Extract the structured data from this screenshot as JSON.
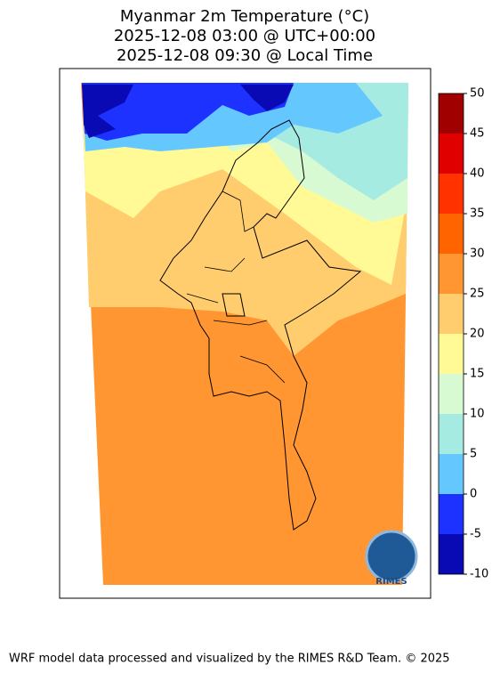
{
  "title": [
    "Myanmar 2m Temperature (°C)",
    "2025-12-08 03:00 @ UTC+00:00",
    "2025-12-08 09:30 @ Local Time"
  ],
  "colorbar": {
    "levels": [
      -10,
      -5,
      0,
      5,
      10,
      15,
      20,
      25,
      30,
      35,
      40,
      45,
      50
    ],
    "colors": [
      "#0a0ab4",
      "#1e32ff",
      "#64c8ff",
      "#a5ebe1",
      "#d7fad2",
      "#fffa96",
      "#ffcd6e",
      "#ff9632",
      "#ff6400",
      "#ff3200",
      "#e10000",
      "#a00000"
    ]
  },
  "logo": "RIMES",
  "footer": "WRF model data processed and visualized by the RIMES R&D Team. © 2025"
}
